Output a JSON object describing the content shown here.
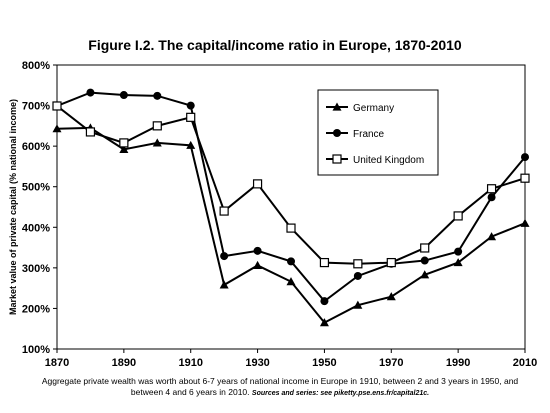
{
  "chart_data": {
    "type": "line",
    "title": "Figure I.2. The capital/income ratio in Europe, 1870-2010",
    "ylabel": "Market value of private capital (% national income)",
    "xlabel": "",
    "xlim": [
      1870,
      2010
    ],
    "ylim": [
      100,
      800
    ],
    "x_ticks": [
      "1870",
      "1890",
      "1910",
      "1930",
      "1950",
      "1970",
      "1990",
      "2010"
    ],
    "y_ticks": [
      "100%",
      "200%",
      "300%",
      "400%",
      "500%",
      "600%",
      "700%",
      "800%"
    ],
    "grid": false,
    "legend_position": "top-right",
    "x": [
      1870,
      1880,
      1890,
      1900,
      1910,
      1920,
      1930,
      1940,
      1950,
      1960,
      1970,
      1980,
      1990,
      2000,
      2010
    ],
    "series": [
      {
        "name": "Germany",
        "marker": "triangle",
        "values": [
          643,
          645,
          592,
          608,
          602,
          258,
          306,
          266,
          165,
          208,
          229,
          283,
          313,
          377,
          410
        ]
      },
      {
        "name": "France",
        "marker": "circle",
        "values": [
          699,
          732,
          726,
          724,
          700,
          329,
          342,
          316,
          218,
          280,
          310,
          318,
          340,
          474,
          573
        ]
      },
      {
        "name": "United Kingdom",
        "marker": "square",
        "values": [
          699,
          635,
          608,
          650,
          671,
          440,
          507,
          398,
          313,
          310,
          313,
          349,
          428,
          495,
          521
        ]
      }
    ],
    "caption_main": "Aggregate private wealth was worth about 6-7 years of national income in Europe in 1910, between 2 and 3 years in 1950, and between 4 and 6 years in 2010.",
    "caption_source": "Sources and series: see piketty.pse.ens.fr/capital21c."
  }
}
